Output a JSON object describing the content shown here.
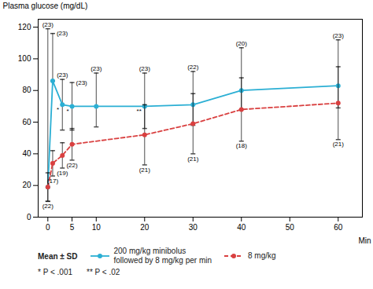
{
  "chart_data": {
    "type": "line",
    "xlabel": "Min",
    "ylabel": "Plasma glucose (mg/dL)",
    "xlim": [
      -2,
      65
    ],
    "ylim": [
      0,
      125
    ],
    "xticks": [
      0,
      5,
      10,
      20,
      30,
      40,
      50,
      60
    ],
    "yticks": [
      0,
      20,
      40,
      60,
      80,
      100,
      120
    ],
    "legend": "bottom",
    "legend_title": "Mean ± SD",
    "annotations": [
      "* P < .001",
      "** P < .02"
    ],
    "series": [
      {
        "name": "200 mg/kg minibolus\nfollowed by 8 mg/kg per min",
        "color": "#2BAFD4",
        "line_style": "solid",
        "marker": "circle",
        "x": [
          0,
          1,
          3,
          5,
          10,
          20,
          30,
          40,
          60
        ],
        "values": [
          19,
          86,
          71,
          70,
          70,
          70,
          71,
          80,
          83
        ],
        "yerr_lo": [
          9,
          0,
          16,
          15,
          13,
          14,
          13,
          12,
          14
        ],
        "yerr_hi": [
          100,
          30,
          16,
          15,
          21,
          21,
          21,
          27,
          29
        ],
        "n_labels": [
          "(23)",
          "(23)",
          "(23)",
          "(23)",
          "(23)",
          "(23)",
          "(22)",
          "(20)",
          "(23)"
        ],
        "star_labels": [
          null,
          null,
          "*",
          "*",
          null,
          "**",
          null,
          null,
          null
        ]
      },
      {
        "name": "8 mg/kg",
        "color": "#D94040",
        "line_style": "dashed",
        "marker": "circle",
        "x": [
          0,
          1,
          3,
          5,
          20,
          30,
          40,
          60
        ],
        "values": [
          19,
          34,
          39,
          46,
          52,
          59,
          68,
          72
        ],
        "yerr_lo": [
          9,
          8,
          8,
          10,
          19,
          19,
          20,
          23
        ],
        "yerr_hi": [
          9,
          8,
          8,
          10,
          19,
          19,
          20,
          23
        ],
        "n_labels": [
          "(22)",
          "(17)",
          "(19)",
          "(22)",
          "(21)",
          "(21)",
          "(18)",
          "(21)"
        ]
      }
    ]
  }
}
